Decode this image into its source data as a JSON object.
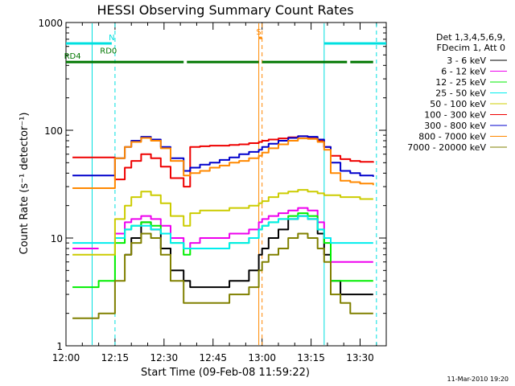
{
  "chart_data": {
    "type": "line",
    "title": "HESSI Observing Summary Count Rates",
    "xlabel": "Start Time (09-Feb-08 11:59:22)",
    "ylabel": "Count Rate (s⁻¹ detector⁻¹)",
    "y_scale": "log",
    "ylim": [
      1,
      1000
    ],
    "xlim": [
      "12:00",
      "13:38"
    ],
    "x_ticks": [
      "12:00",
      "12:15",
      "12:30",
      "12:45",
      "13:00",
      "13:15",
      "13:30"
    ],
    "y_ticks": [
      "1",
      "10",
      "100",
      "1000"
    ],
    "footer_date": "11-Mar-2010 19:20",
    "legend": {
      "header": [
        "Det 1,3,4,5,6,9,",
        "FDecim 1, Att 0"
      ],
      "placement": "right"
    },
    "x": [
      "12:02",
      "12:09",
      "12:10",
      "12:15",
      "12:18",
      "12:20",
      "12:23",
      "12:26",
      "12:29",
      "12:32",
      "12:36",
      "12:38",
      "12:41",
      "12:44",
      "12:47",
      "12:50",
      "12:53",
      "12:56",
      "12:59",
      "13:00",
      "13:02",
      "13:05",
      "13:08",
      "13:11",
      "13:14",
      "13:17",
      "13:19",
      "13:21",
      "13:24",
      "13:27",
      "13:30",
      "13:34"
    ],
    "series": [
      {
        "name": "3 - 6 keV",
        "color": "#000000",
        "values": [
          null,
          null,
          null,
          null,
          7,
          10,
          14,
          12,
          8,
          5,
          4,
          3.5,
          3.5,
          3.5,
          3.5,
          4,
          4,
          5,
          7,
          8,
          10,
          12,
          15,
          16,
          15,
          11,
          7,
          4,
          3,
          3,
          3,
          3
        ]
      },
      {
        "name": "6 - 12 keV",
        "color": "#ee00ee",
        "values": [
          8,
          8,
          null,
          11,
          14,
          15,
          16,
          15,
          13,
          10,
          8,
          9,
          10,
          10,
          10,
          11,
          11,
          12,
          14,
          15,
          16,
          17,
          18,
          19,
          18,
          14,
          10,
          6,
          6,
          6,
          6,
          6
        ]
      },
      {
        "name": "12 - 25 keV",
        "color": "#00ee00",
        "values": [
          3.5,
          3.5,
          4,
          9,
          12,
          13,
          14,
          13,
          11,
          9,
          7,
          8,
          8,
          8,
          8,
          9,
          9,
          10,
          12,
          13,
          14,
          15,
          16,
          17,
          16,
          12,
          9,
          4,
          4,
          4,
          4,
          4
        ]
      },
      {
        "name": "25 - 50 keV",
        "color": "#00eeee",
        "values": [
          9,
          9,
          9,
          10,
          12,
          13,
          13,
          12,
          11,
          9,
          8,
          8,
          8,
          8,
          8,
          9,
          9,
          10,
          12,
          13,
          14,
          15,
          15,
          16,
          15,
          12,
          10,
          9,
          9,
          9,
          9,
          9
        ]
      },
      {
        "name": "50 - 100 keV",
        "color": "#cccc00",
        "values": [
          7,
          7,
          7,
          15,
          20,
          24,
          27,
          25,
          21,
          16,
          13,
          17,
          18,
          18,
          18,
          19,
          19,
          20,
          21,
          22,
          24,
          26,
          27,
          28,
          27,
          26,
          25,
          25,
          24,
          24,
          23,
          23
        ]
      },
      {
        "name": "100 - 300 keV",
        "color": "#ee0000",
        "values": [
          56,
          56,
          56,
          35,
          45,
          52,
          60,
          55,
          46,
          36,
          30,
          70,
          71,
          72,
          72,
          73,
          74,
          76,
          78,
          80,
          82,
          84,
          86,
          88,
          86,
          80,
          70,
          58,
          54,
          52,
          51,
          50
        ]
      },
      {
        "name": "300 - 800 keV",
        "color": "#0000cc",
        "values": [
          38,
          38,
          38,
          55,
          70,
          80,
          87,
          82,
          70,
          55,
          42,
          45,
          48,
          50,
          53,
          56,
          60,
          63,
          66,
          70,
          75,
          80,
          85,
          88,
          87,
          82,
          70,
          50,
          42,
          40,
          38,
          37
        ]
      },
      {
        "name": "800 - 7000 keV",
        "color": "#ff8800",
        "values": [
          29,
          29,
          29,
          55,
          70,
          78,
          85,
          80,
          68,
          52,
          38,
          40,
          42,
          45,
          47,
          50,
          52,
          55,
          58,
          62,
          68,
          74,
          80,
          84,
          83,
          78,
          66,
          40,
          34,
          33,
          32,
          31
        ]
      },
      {
        "name": "7000 - 20000 keV",
        "color": "#808000",
        "values": [
          1.8,
          1.8,
          2,
          4,
          7,
          9,
          11,
          10,
          7,
          4,
          2.5,
          2.5,
          2.5,
          2.5,
          2.5,
          3,
          3,
          3.5,
          5,
          6,
          7,
          8,
          10,
          11,
          10,
          8,
          6,
          3,
          2.5,
          2,
          2,
          2
        ]
      }
    ],
    "annotations": [
      {
        "label": "N",
        "color": "#00e0e0",
        "time": "12:14",
        "level": 640,
        "segments": [
          [
            "12:00",
            "12:14"
          ],
          [
            "13:19",
            "13:38"
          ]
        ]
      },
      {
        "label": "RD0",
        "color": "#007700",
        "time": "12:13",
        "level": 480
      },
      {
        "label": "RD4",
        "color": "#007700",
        "time": "12:02",
        "level": 430,
        "segments": [
          [
            "12:00",
            "12:36"
          ],
          [
            "12:37",
            "12:59"
          ],
          [
            "13:00",
            "13:26"
          ],
          [
            "13:27",
            "13:34"
          ]
        ]
      },
      {
        "label": "S",
        "color": "#ff8800",
        "time": "12:59",
        "level": 720,
        "segments": [
          [
            "12:59",
            "13:00"
          ]
        ]
      }
    ],
    "vertical_lines": [
      {
        "time": "12:08",
        "color": "#00e0e0",
        "style": "solid"
      },
      {
        "time": "12:15",
        "color": "#00e0e0",
        "style": "dashed"
      },
      {
        "time": "12:59",
        "color": "#ff8800",
        "style": "solid"
      },
      {
        "time": "13:00",
        "color": "#ff8800",
        "style": "dashed"
      },
      {
        "time": "13:19",
        "color": "#00e0e0",
        "style": "solid"
      },
      {
        "time": "13:35",
        "color": "#00e0e0",
        "style": "dashed"
      }
    ]
  }
}
